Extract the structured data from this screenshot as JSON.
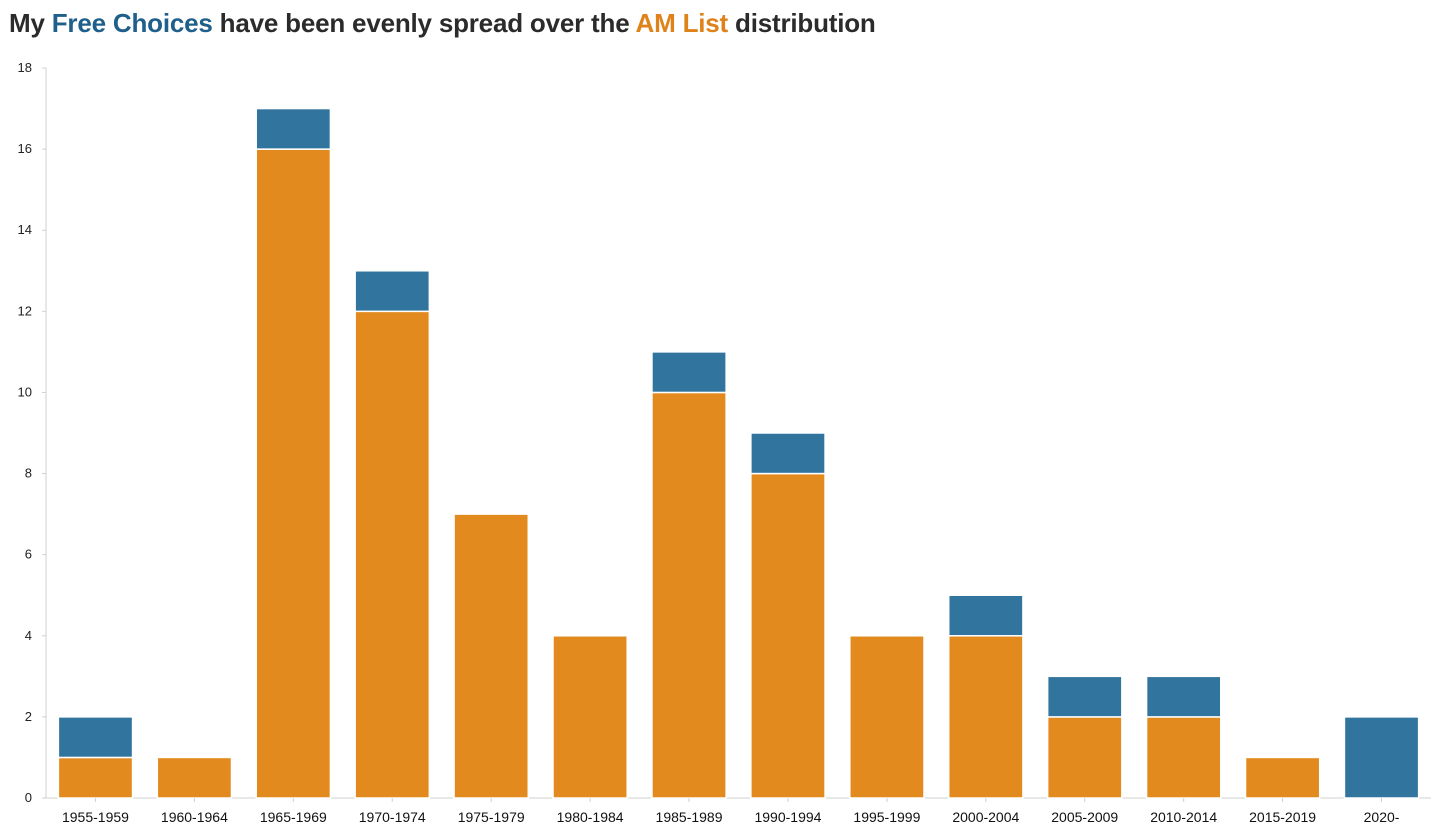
{
  "title": {
    "prefix": "My ",
    "highlight1": "Free Choices",
    "middle": " have been evenly spread over the ",
    "highlight2": "AM List",
    "suffix": " distribution"
  },
  "chart_data": {
    "type": "bar",
    "stacked": true,
    "title": "My Free Choices have been evenly spread over the AM List distribution",
    "xlabel": "",
    "ylabel": "",
    "ylim": [
      0,
      18
    ],
    "yticks": [
      0,
      2,
      4,
      6,
      8,
      10,
      12,
      14,
      16,
      18
    ],
    "grid": false,
    "categories": [
      "1955-1959",
      "1960-1964",
      "1965-1969",
      "1970-1974",
      "1975-1979",
      "1980-1984",
      "1985-1989",
      "1990-1994",
      "1995-1999",
      "2000-2004",
      "2005-2009",
      "2010-2014",
      "2015-2019",
      "2020-"
    ],
    "series": [
      {
        "name": "AM List",
        "color": "#e38a1e",
        "values": [
          1,
          1,
          16,
          12,
          7,
          4,
          10,
          8,
          4,
          4,
          2,
          2,
          1,
          0
        ]
      },
      {
        "name": "Free Choices",
        "color": "#31759f",
        "values": [
          1,
          0,
          1,
          1,
          0,
          0,
          1,
          1,
          0,
          1,
          1,
          1,
          0,
          2
        ]
      }
    ]
  }
}
